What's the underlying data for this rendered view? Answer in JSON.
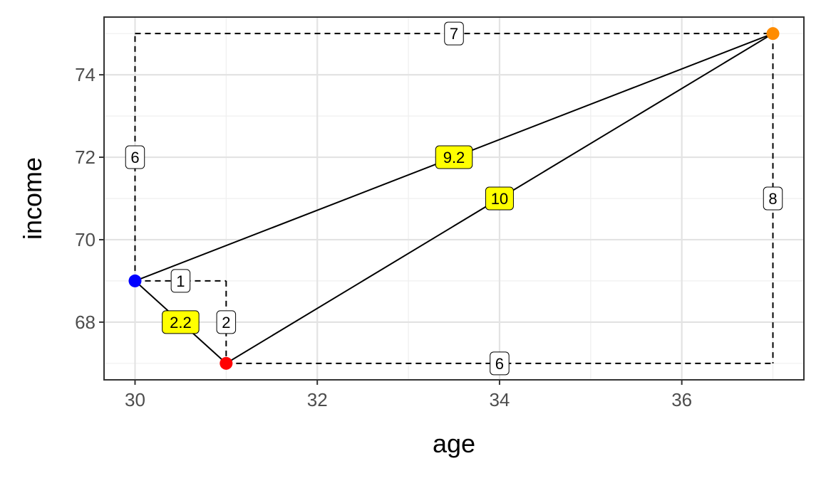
{
  "chart_data": {
    "type": "scatter",
    "xlabel": "age",
    "ylabel": "income",
    "xlim": [
      29.66,
      37.34
    ],
    "ylim": [
      66.6,
      75.4
    ],
    "xticks": [
      30,
      32,
      34,
      36
    ],
    "yticks": [
      68,
      70,
      72,
      74
    ],
    "xtick_labels": [
      "30",
      "32",
      "34",
      "36"
    ],
    "ytick_labels": [
      "68",
      "70",
      "72",
      "74"
    ],
    "grid": true,
    "legend": "none",
    "points": [
      {
        "x": 30,
        "y": 69,
        "color": "#0000ff"
      },
      {
        "x": 31,
        "y": 67,
        "color": "#ff0000"
      },
      {
        "x": 37,
        "y": 75,
        "color": "#ff8c00"
      }
    ],
    "segments": [
      {
        "x1": 30,
        "y1": 69,
        "x2": 31,
        "y2": 67,
        "style": "solid",
        "label": "2.2",
        "lx": 30.5,
        "ly": 68,
        "highlight": true
      },
      {
        "x1": 30,
        "y1": 69,
        "x2": 37,
        "y2": 75,
        "style": "solid",
        "label": "9.2",
        "lx": 33.5,
        "ly": 72,
        "highlight": true
      },
      {
        "x1": 31,
        "y1": 67,
        "x2": 37,
        "y2": 75,
        "style": "solid",
        "label": "10",
        "lx": 34,
        "ly": 71,
        "highlight": true
      },
      {
        "x1": 30,
        "y1": 69,
        "x2": 31,
        "y2": 69,
        "style": "dashed",
        "label": "1",
        "lx": 30.5,
        "ly": 69,
        "highlight": false
      },
      {
        "x1": 31,
        "y1": 69,
        "x2": 31,
        "y2": 67,
        "style": "dashed",
        "label": "2",
        "lx": 31,
        "ly": 68,
        "highlight": false
      },
      {
        "x1": 30,
        "y1": 69,
        "x2": 30,
        "y2": 75,
        "style": "dashed",
        "label": "6",
        "lx": 30,
        "ly": 72,
        "highlight": false
      },
      {
        "x1": 30,
        "y1": 75,
        "x2": 37,
        "y2": 75,
        "style": "dashed",
        "label": "7",
        "lx": 33.5,
        "ly": 75,
        "highlight": false
      },
      {
        "x1": 37,
        "y1": 75,
        "x2": 37,
        "y2": 67,
        "style": "dashed",
        "label": "8",
        "lx": 37,
        "ly": 71,
        "highlight": false
      },
      {
        "x1": 31,
        "y1": 67,
        "x2": 37,
        "y2": 67,
        "style": "dashed",
        "label": "6",
        "lx": 34,
        "ly": 67,
        "highlight": false
      }
    ],
    "colors": {
      "highlight_label": "#ffff00",
      "plain_label": "#ffffff"
    }
  }
}
